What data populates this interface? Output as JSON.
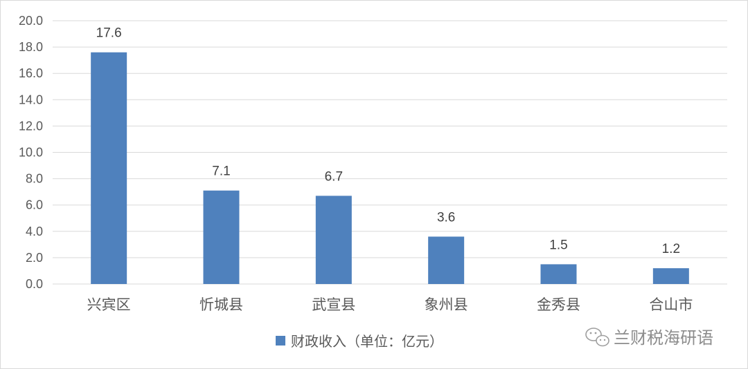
{
  "chart_data": {
    "type": "bar",
    "categories": [
      "兴宾区",
      "忻城县",
      "武宣县",
      "象州县",
      "金秀县",
      "合山市"
    ],
    "series": [
      {
        "name": "财政收入（单位：亿元）",
        "values": [
          17.6,
          7.1,
          6.7,
          3.6,
          1.5,
          1.2
        ]
      }
    ],
    "data_labels": [
      "17.6",
      "7.1",
      "6.7",
      "3.6",
      "1.5",
      "1.2"
    ],
    "yticks": [
      "0.0",
      "2.0",
      "4.0",
      "6.0",
      "8.0",
      "10.0",
      "12.0",
      "14.0",
      "16.0",
      "18.0",
      "20.0"
    ],
    "ylim": [
      0,
      20
    ],
    "grid": true,
    "legend_position": "bottom",
    "bar_color": "#4f81bd",
    "grid_color": "#d9d9d9"
  },
  "watermark": {
    "text": "兰财税海研语",
    "icon": "wechat-icon"
  }
}
